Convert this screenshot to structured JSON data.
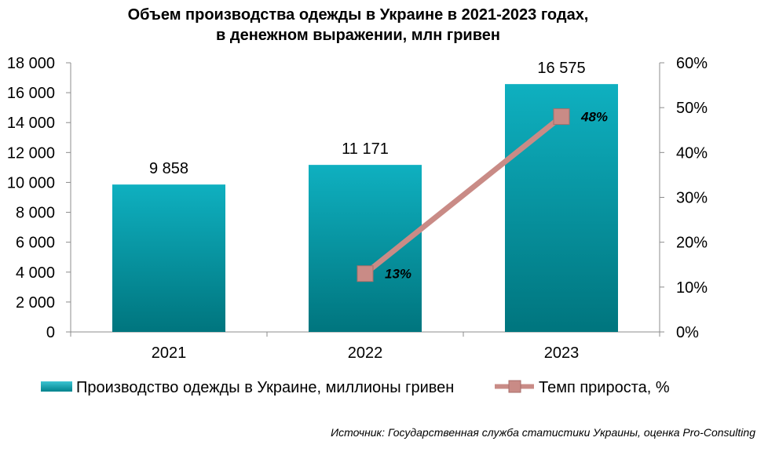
{
  "chart_data": {
    "type": "bar",
    "title_line1": "Объем производства одежды в Украине в 2021-2023 годах,",
    "title_line2": "в денежном выражении, млн гривен",
    "categories": [
      "2021",
      "2022",
      "2023"
    ],
    "series": [
      {
        "name": "Производство одежды в Украине, миллионы гривен",
        "type": "bar",
        "axis": "left",
        "values": [
          9858,
          11171,
          16575
        ],
        "value_labels": [
          "9 858",
          "11 171",
          "16 575"
        ],
        "color": "#0aa3b3"
      },
      {
        "name": "Темп прироста, %",
        "type": "line",
        "axis": "right",
        "values": [
          null,
          13,
          48
        ],
        "value_labels": [
          "",
          "13%",
          "48%"
        ],
        "color": "#c98b86"
      }
    ],
    "left_axis": {
      "ylim": [
        0,
        18000
      ],
      "ticks": [
        0,
        2000,
        4000,
        6000,
        8000,
        10000,
        12000,
        14000,
        16000,
        18000
      ],
      "tick_labels": [
        "0",
        "2 000",
        "4 000",
        "6 000",
        "8 000",
        "10 000",
        "12 000",
        "14 000",
        "16 000",
        "18 000"
      ]
    },
    "right_axis": {
      "ylim": [
        0,
        60
      ],
      "ticks": [
        0,
        10,
        20,
        30,
        40,
        50,
        60
      ],
      "tick_labels": [
        "0%",
        "10%",
        "20%",
        "30%",
        "40%",
        "50%",
        "60%"
      ]
    },
    "grid": false,
    "legend_position": "bottom",
    "source": "Источник: Государственная служба статистики Украины, оценка Pro-Consulting"
  }
}
